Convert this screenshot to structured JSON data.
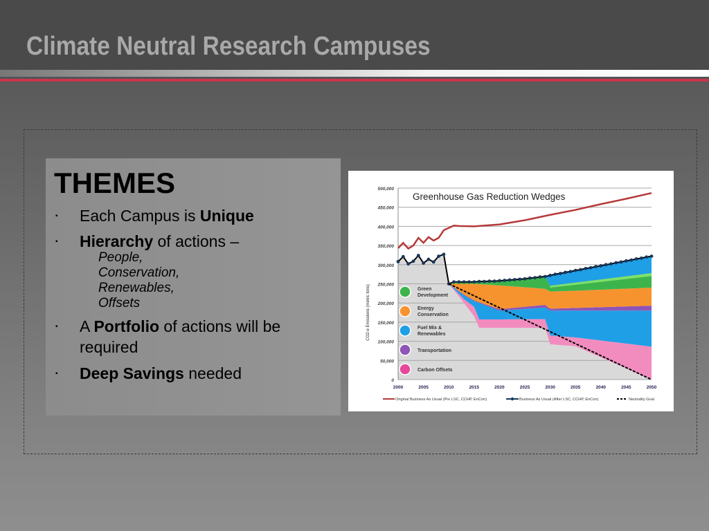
{
  "slide": {
    "title": "Climate Neutral Research Campuses"
  },
  "themes": {
    "heading": "THEMES",
    "b1": {
      "pre": "Each Campus is ",
      "bold": "Unique"
    },
    "b2": {
      "bold": "Hierarchy",
      "post": " of actions –",
      "subs": [
        "People,",
        "Conservation,",
        "Renewables,",
        "Offsets"
      ]
    },
    "b3": {
      "pre": "A ",
      "bold": "Portfolio",
      "post": " of actions will be",
      "line2": "required"
    },
    "b4": {
      "bold": "Deep Savings",
      "post": " needed"
    },
    "bullet": "▪"
  },
  "chart_data": {
    "type": "area",
    "title": "Greenhouse Gas Reduction Wedges",
    "ylabel": "CO2-e Emissions (metric tons)",
    "xlabel": "",
    "xlim": [
      2000,
      2050
    ],
    "ylim": [
      0,
      500000
    ],
    "xticks": [
      "2000",
      "2005",
      "2010",
      "2015",
      "2020",
      "2025",
      "2030",
      "2035",
      "2040",
      "2045",
      "2050"
    ],
    "yticks": [
      "0",
      "50,000",
      "100,000",
      "150,000",
      "200,000",
      "250,000",
      "300,000",
      "350,000",
      "400,000",
      "450,000",
      "500,000"
    ],
    "grid": true,
    "wedge_years": [
      2010,
      2013,
      2015,
      2016,
      2020,
      2029,
      2030,
      2035,
      2050
    ],
    "wedges": [
      {
        "name": "Carbon Offsets",
        "color": "#f28cbf",
        "lower": [
          250000,
          200000,
          165000,
          135000,
          135000,
          135000,
          92000,
          87000,
          0
        ],
        "upper": [
          250000,
          210000,
          190000,
          157000,
          157000,
          158000,
          115000,
          110000,
          86000
        ]
      },
      {
        "name": "Fuel Mix & Renewables",
        "color": "#1f9fe6",
        "lower": [
          250000,
          210000,
          190000,
          157000,
          157000,
          158000,
          115000,
          110000,
          86000
        ],
        "upper": [
          250000,
          220000,
          205000,
          200000,
          180000,
          188000,
          180000,
          180000,
          180000
        ]
      },
      {
        "name": "Transportation",
        "color": "#8e55b5",
        "lower": [
          250000,
          220000,
          205000,
          200000,
          180000,
          188000,
          180000,
          180000,
          180000
        ],
        "upper": [
          250000,
          222000,
          207000,
          202000,
          184000,
          195000,
          185000,
          187000,
          193000
        ]
      },
      {
        "name": "Energy Conservation",
        "color": "#f7932f",
        "lower": [
          250000,
          222000,
          207000,
          202000,
          184000,
          195000,
          185000,
          187000,
          193000
        ],
        "upper": [
          250000,
          250000,
          250000,
          249000,
          246000,
          237000,
          230000,
          232000,
          240000
        ]
      },
      {
        "name": "Green Development",
        "color": "#3cb44b",
        "lower": [
          250000,
          250000,
          250000,
          249000,
          246000,
          237000,
          230000,
          232000,
          240000
        ],
        "upper": [
          250000,
          255000,
          255000,
          256000,
          258000,
          269000,
          245000,
          250000,
          278000
        ]
      },
      {
        "name": "Fuel Mix & Renewables (new)",
        "color": "#1f9fe6",
        "lower": [
          250000,
          255000,
          255000,
          256000,
          258000,
          269000,
          245000,
          250000,
          278000
        ],
        "upper": [
          250000,
          255000,
          255000,
          256000,
          258000,
          269000,
          272000,
          285000,
          322000
        ]
      }
    ],
    "legend_icons": [
      {
        "label1": "Green",
        "label2": "Development",
        "color": "#3cb44b"
      },
      {
        "label1": "Energy",
        "label2": "Conservation",
        "color": "#f7932f"
      },
      {
        "label1": "Fuel Mix &",
        "label2": "Renewables",
        "color": "#1f9fe6"
      },
      {
        "label1": "Transportation",
        "label2": "",
        "color": "#8e55b5"
      },
      {
        "label1": "Carbon Offsets",
        "label2": "",
        "color": "#e6489a"
      }
    ],
    "series": [
      {
        "name": "Original Business As Usual (Pre LSC, CCHP, EnCon)",
        "color": "#b5393a",
        "x": [
          2000,
          2001,
          2002,
          2003,
          2004,
          2005,
          2006,
          2007,
          2008,
          2009,
          2010,
          2011,
          2012,
          2015,
          2020,
          2025,
          2030,
          2035,
          2040,
          2045,
          2050
        ],
        "values": [
          343000,
          357000,
          342000,
          350000,
          370000,
          357000,
          372000,
          363000,
          370000,
          390000,
          396000,
          402000,
          401000,
          400000,
          405000,
          416000,
          430000,
          443000,
          458000,
          472000,
          487000
        ]
      },
      {
        "name": "Business As Usual (After LSC, CCHP, EnCon)",
        "color": "#17375e",
        "x_start": 2000,
        "values": [
          308000,
          321000,
          302000,
          309000,
          324000,
          304000,
          314000,
          307000,
          322000,
          327000,
          250000,
          255000,
          255000,
          255000,
          255000,
          255000,
          256000,
          256000,
          257000,
          257000,
          258000,
          259000,
          260000,
          261000,
          262000,
          263000,
          265000,
          266000,
          268000,
          269000,
          272000,
          275000,
          277000,
          280000,
          282000,
          285000,
          287000,
          290000,
          292000,
          295000,
          297000,
          300000,
          302000,
          305000,
          307000,
          310000,
          312000,
          315000,
          317000,
          320000,
          322000
        ]
      },
      {
        "name": "Neutrality Goal",
        "color": "#000000",
        "x": [
          2010,
          2050
        ],
        "values": [
          250000,
          0
        ]
      }
    ],
    "legend_placement": "bottom"
  }
}
